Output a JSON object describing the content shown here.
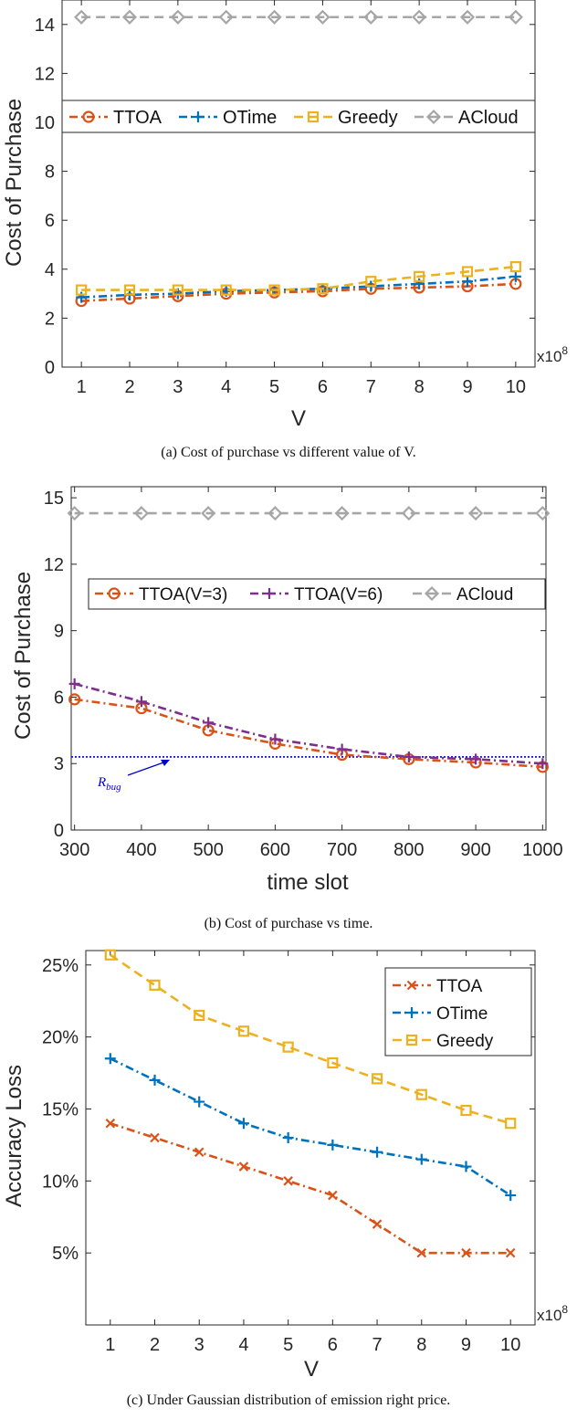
{
  "chart_data": [
    {
      "type": "line",
      "title": "",
      "xlabel": "V",
      "ylabel": "Cost of Purchase",
      "x_multiplier": "x10^8",
      "x": [
        1,
        2,
        3,
        4,
        5,
        6,
        7,
        8,
        9,
        10
      ],
      "xlim": [
        0.6,
        10.4
      ],
      "ylim": [
        0,
        15
      ],
      "yticks": [
        0,
        2,
        4,
        6,
        8,
        10,
        12,
        14
      ],
      "legend_position": "top (horizontal)",
      "series": [
        {
          "name": "TTOA",
          "color": "#d95319",
          "marker": "circle",
          "dash": "dashdot",
          "values": [
            2.7,
            2.8,
            2.9,
            3.0,
            3.05,
            3.1,
            3.2,
            3.25,
            3.3,
            3.4
          ]
        },
        {
          "name": "OTime",
          "color": "#0072bd",
          "marker": "plus",
          "dash": "dashdot",
          "values": [
            2.85,
            2.95,
            3.0,
            3.1,
            3.15,
            3.2,
            3.3,
            3.4,
            3.5,
            3.7
          ]
        },
        {
          "name": "Greedy",
          "color": "#edb120",
          "marker": "square",
          "dash": "dash",
          "values": [
            3.15,
            3.15,
            3.15,
            3.15,
            3.15,
            3.2,
            3.5,
            3.7,
            3.9,
            4.1
          ]
        },
        {
          "name": "ACloud",
          "color": "#a6a6a6",
          "marker": "diamond",
          "dash": "dash",
          "values": [
            14.3,
            14.3,
            14.3,
            14.3,
            14.3,
            14.3,
            14.3,
            14.3,
            14.3,
            14.3
          ]
        }
      ],
      "caption": "(a) Cost of purchase vs different value of V."
    },
    {
      "type": "line",
      "title": "",
      "xlabel": "time slot",
      "ylabel": "Cost of Purchase",
      "x": [
        300,
        400,
        500,
        600,
        700,
        800,
        900,
        1000
      ],
      "xlim": [
        295,
        1005
      ],
      "ylim": [
        0,
        15.5
      ],
      "yticks": [
        0,
        3,
        6,
        9,
        12,
        15
      ],
      "legend_position": "middle (horizontal)",
      "series": [
        {
          "name": "TTOA(V=3)",
          "color": "#d95319",
          "marker": "circle",
          "dash": "dashdot",
          "values": [
            5.9,
            5.5,
            4.5,
            3.9,
            3.4,
            3.2,
            3.05,
            2.85
          ]
        },
        {
          "name": "TTOA(V=6)",
          "color": "#7e2f8e",
          "marker": "plus",
          "dash": "dashdot",
          "values": [
            6.6,
            5.8,
            4.85,
            4.1,
            3.65,
            3.3,
            3.2,
            3.0
          ]
        },
        {
          "name": "ACloud",
          "color": "#a6a6a6",
          "marker": "diamond",
          "dash": "dash",
          "values": [
            14.3,
            14.3,
            14.3,
            14.3,
            14.3,
            14.3,
            14.3,
            14.3
          ]
        }
      ],
      "reference_line": {
        "name": "R_bug",
        "value": 3.3,
        "color": "#0000cc"
      },
      "annotation": {
        "base": "R",
        "sub": "bug"
      },
      "caption": "(b) Cost of purchase vs time."
    },
    {
      "type": "line",
      "title": "",
      "xlabel": "V",
      "ylabel": "Accuracy Loss",
      "x_multiplier": "x10^8",
      "x": [
        1,
        2,
        3,
        4,
        5,
        6,
        7,
        8,
        9,
        10
      ],
      "xlim": [
        0.45,
        10.55
      ],
      "ylim": [
        0,
        26
      ],
      "yticks": [
        5,
        10,
        15,
        20,
        25
      ],
      "ytick_suffix": "%",
      "legend_position": "top-right",
      "series": [
        {
          "name": "TTOA",
          "color": "#d95319",
          "marker": "x",
          "dash": "dashdot",
          "values": [
            14,
            13,
            12,
            11,
            10,
            9,
            7,
            5,
            5,
            5
          ]
        },
        {
          "name": "OTime",
          "color": "#0072bd",
          "marker": "plus",
          "dash": "dashdot",
          "values": [
            18.5,
            17,
            15.5,
            14,
            13,
            12.5,
            12,
            11.5,
            11,
            9
          ]
        },
        {
          "name": "Greedy",
          "color": "#edb120",
          "marker": "square",
          "dash": "dash",
          "values": [
            25.7,
            23.6,
            21.5,
            20.4,
            19.3,
            18.2,
            17.1,
            16.0,
            14.9,
            14.0
          ]
        }
      ],
      "caption": "(c) Under Gaussian distribution of emission right price."
    }
  ]
}
